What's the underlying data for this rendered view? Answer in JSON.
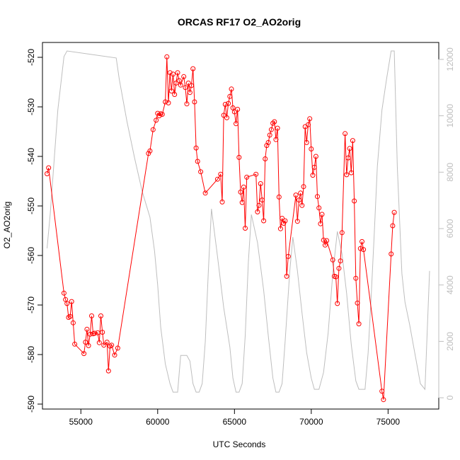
{
  "chart_data": {
    "type": "line",
    "title": "ORCAS RF17 O2_AO2orig",
    "xlabel": "UTC Seconds",
    "ylabel": "O2_AO2orig",
    "xlim": [
      52500,
      78300
    ],
    "ylim": [
      -591,
      -517
    ],
    "x_ticks": [
      55000,
      60000,
      65000,
      70000,
      75000
    ],
    "y_ticks": [
      -590,
      -580,
      -570,
      -560,
      -550,
      -540,
      -530,
      -520
    ],
    "y2lim": [
      -400,
      12600
    ],
    "y2_ticks": [
      0,
      2000,
      4000,
      6000,
      8000,
      10000,
      12000
    ],
    "colors": {
      "primary": "#ff0000",
      "secondary": "#bebebe",
      "axis": "#000000"
    },
    "series": [
      {
        "color": "#ff0000",
        "style": "line+points",
        "points": [
          [
            52800,
            -543.5
          ],
          [
            52900,
            -542.3
          ],
          [
            53900,
            -567.6
          ],
          [
            54000,
            -568.9
          ],
          [
            54100,
            -569.7
          ],
          [
            54200,
            -572.5
          ],
          [
            54300,
            -572.3
          ],
          [
            54400,
            -569.3
          ],
          [
            54500,
            -573.6
          ],
          [
            54600,
            -577.9
          ],
          [
            55200,
            -579.8
          ],
          [
            55300,
            -577.5
          ],
          [
            55400,
            -574.9
          ],
          [
            55500,
            -578.2
          ],
          [
            55600,
            -575.9
          ],
          [
            55700,
            -572.2
          ],
          [
            55800,
            -575.8
          ],
          [
            55900,
            -575.7
          ],
          [
            56100,
            -575.6
          ],
          [
            56200,
            -577.6
          ],
          [
            56300,
            -572.2
          ],
          [
            56400,
            -575.5
          ],
          [
            56500,
            -578.1
          ],
          [
            56700,
            -577.5
          ],
          [
            56800,
            -583.3
          ],
          [
            56900,
            -578.3
          ],
          [
            57000,
            -578.1
          ],
          [
            57200,
            -580.1
          ],
          [
            57400,
            -578.7
          ],
          [
            59400,
            -539.4
          ],
          [
            59500,
            -538.9
          ],
          [
            59700,
            -534.6
          ],
          [
            59900,
            -532.7
          ],
          [
            60000,
            -531.3
          ],
          [
            60100,
            -531.8
          ],
          [
            60200,
            -531.4
          ],
          [
            60300,
            -531.5
          ],
          [
            60500,
            -529.0
          ],
          [
            60600,
            -519.9
          ],
          [
            60700,
            -529.2
          ],
          [
            60800,
            -523.1
          ],
          [
            60900,
            -526.8
          ],
          [
            61000,
            -523.4
          ],
          [
            61100,
            -527.5
          ],
          [
            61200,
            -525.2
          ],
          [
            61300,
            -523.1
          ],
          [
            61400,
            -524.7
          ],
          [
            61500,
            -525.6
          ],
          [
            61700,
            -523.9
          ],
          [
            61800,
            -526.1
          ],
          [
            61900,
            -529.4
          ],
          [
            62000,
            -525.2
          ],
          [
            62100,
            -527.1
          ],
          [
            62200,
            -525.7
          ],
          [
            62300,
            -522.3
          ],
          [
            62400,
            -529.0
          ],
          [
            62500,
            -538.3
          ],
          [
            62600,
            -541.0
          ],
          [
            62800,
            -543.1
          ],
          [
            63100,
            -547.4
          ],
          [
            63900,
            -544.6
          ],
          [
            64100,
            -543.6
          ],
          [
            64200,
            -549.2
          ],
          [
            64300,
            -531.7
          ],
          [
            64400,
            -529.5
          ],
          [
            64500,
            -532.2
          ],
          [
            64600,
            -529.3
          ],
          [
            64700,
            -527.9
          ],
          [
            64800,
            -526.4
          ],
          [
            64900,
            -530.2
          ],
          [
            65000,
            -531.0
          ],
          [
            65100,
            -533.4
          ],
          [
            65200,
            -530.5
          ],
          [
            65300,
            -540.2
          ],
          [
            65400,
            -547.2
          ],
          [
            65500,
            -549.3
          ],
          [
            65600,
            -546.2
          ],
          [
            65700,
            -554.5
          ],
          [
            65800,
            -544.2
          ],
          [
            66400,
            -543.6
          ],
          [
            66500,
            -551.2
          ],
          [
            66600,
            -549.9
          ],
          [
            66700,
            -545.5
          ],
          [
            66800,
            -548.8
          ],
          [
            66900,
            -553.0
          ],
          [
            67000,
            -540.5
          ],
          [
            67100,
            -537.8
          ],
          [
            67200,
            -537.2
          ],
          [
            67300,
            -535.7
          ],
          [
            67400,
            -534.6
          ],
          [
            67500,
            -533.3
          ],
          [
            67600,
            -533.0
          ],
          [
            67700,
            -536.6
          ],
          [
            67800,
            -534.3
          ],
          [
            67900,
            -548.2
          ],
          [
            68000,
            -554.6
          ],
          [
            68100,
            -552.5
          ],
          [
            68200,
            -553.5
          ],
          [
            68300,
            -553.0
          ],
          [
            68400,
            -564.2
          ],
          [
            68500,
            -560.2
          ],
          [
            69000,
            -547.8
          ],
          [
            69100,
            -553.1
          ],
          [
            69200,
            -548.8
          ],
          [
            69300,
            -547.4
          ],
          [
            69400,
            -549.9
          ],
          [
            69500,
            -546.1
          ],
          [
            69600,
            -534.0
          ],
          [
            69700,
            -537.2
          ],
          [
            69800,
            -533.6
          ],
          [
            69900,
            -532.4
          ],
          [
            70000,
            -538.5
          ],
          [
            70100,
            -543.8
          ],
          [
            70200,
            -542.2
          ],
          [
            70300,
            -540.0
          ],
          [
            70400,
            -548.1
          ],
          [
            70500,
            -550.4
          ],
          [
            70600,
            -553.6
          ],
          [
            70700,
            -551.7
          ],
          [
            70800,
            -556.9
          ],
          [
            70900,
            -557.9
          ],
          [
            71000,
            -557.0
          ],
          [
            71400,
            -560.9
          ],
          [
            71500,
            -564.2
          ],
          [
            71600,
            -564.3
          ],
          [
            71700,
            -569.7
          ],
          [
            71800,
            -562.6
          ],
          [
            71900,
            -561.1
          ],
          [
            72000,
            -555.4
          ],
          [
            72200,
            -535.4
          ],
          [
            72300,
            -543.7
          ],
          [
            72400,
            -540.3
          ],
          [
            72500,
            -538.4
          ],
          [
            72600,
            -543.3
          ],
          [
            72700,
            -536.8
          ],
          [
            72800,
            -549.0
          ],
          [
            72900,
            -564.6
          ],
          [
            73000,
            -569.6
          ],
          [
            73100,
            -573.8
          ],
          [
            73200,
            -558.6
          ],
          [
            73300,
            -557.2
          ],
          [
            73400,
            -558.8
          ],
          [
            74600,
            -587.4
          ],
          [
            74700,
            -589.1
          ],
          [
            75200,
            -559.7
          ],
          [
            75300,
            -554.0
          ],
          [
            75400,
            -551.3
          ]
        ]
      },
      {
        "color": "#bebebe",
        "style": "line",
        "axis": "right",
        "points": [
          [
            52800,
            5300
          ],
          [
            53000,
            6500
          ],
          [
            53500,
            10200
          ],
          [
            53900,
            12100
          ],
          [
            54100,
            12300
          ],
          [
            57300,
            12050
          ],
          [
            57500,
            11300
          ],
          [
            58000,
            9800
          ],
          [
            58500,
            8500
          ],
          [
            59000,
            7300
          ],
          [
            59500,
            6400
          ],
          [
            59800,
            5200
          ],
          [
            60000,
            4000
          ],
          [
            60200,
            2500
          ],
          [
            60500,
            1200
          ],
          [
            60800,
            500
          ],
          [
            61000,
            200
          ],
          [
            61300,
            200
          ],
          [
            61500,
            1500
          ],
          [
            61900,
            1500
          ],
          [
            62100,
            1300
          ],
          [
            62300,
            500
          ],
          [
            62500,
            200
          ],
          [
            62700,
            200
          ],
          [
            62900,
            500
          ],
          [
            63100,
            2000
          ],
          [
            63300,
            4500
          ],
          [
            63500,
            6700
          ],
          [
            63900,
            5000
          ],
          [
            64300,
            3200
          ],
          [
            64700,
            1800
          ],
          [
            64900,
            700
          ],
          [
            65100,
            200
          ],
          [
            65300,
            200
          ],
          [
            65500,
            500
          ],
          [
            65700,
            2200
          ],
          [
            65900,
            4800
          ],
          [
            66100,
            6500
          ],
          [
            66500,
            5500
          ],
          [
            66900,
            3800
          ],
          [
            67200,
            2200
          ],
          [
            67500,
            700
          ],
          [
            67700,
            200
          ],
          [
            67900,
            200
          ],
          [
            68100,
            500
          ],
          [
            68300,
            2000
          ],
          [
            68600,
            4500
          ],
          [
            68800,
            5700
          ],
          [
            69100,
            4500
          ],
          [
            69400,
            3000
          ],
          [
            69700,
            1600
          ],
          [
            70000,
            700
          ],
          [
            70200,
            300
          ],
          [
            70500,
            300
          ],
          [
            70800,
            900
          ],
          [
            71100,
            2300
          ],
          [
            71400,
            4400
          ],
          [
            71700,
            5900
          ],
          [
            72000,
            5100
          ],
          [
            72300,
            3700
          ],
          [
            72600,
            1900
          ],
          [
            72900,
            600
          ],
          [
            73100,
            300
          ],
          [
            73500,
            300
          ],
          [
            73700,
            1600
          ],
          [
            73900,
            3600
          ],
          [
            74100,
            5800
          ],
          [
            74300,
            8200
          ],
          [
            74600,
            10200
          ],
          [
            74900,
            11300
          ],
          [
            75200,
            12300
          ],
          [
            75400,
            12300
          ],
          [
            75600,
            8200
          ],
          [
            75900,
            4400
          ],
          [
            76100,
            3400
          ],
          [
            76400,
            2600
          ],
          [
            76700,
            1700
          ],
          [
            77100,
            500
          ],
          [
            77400,
            300
          ],
          [
            77700,
            4500
          ]
        ]
      }
    ]
  }
}
